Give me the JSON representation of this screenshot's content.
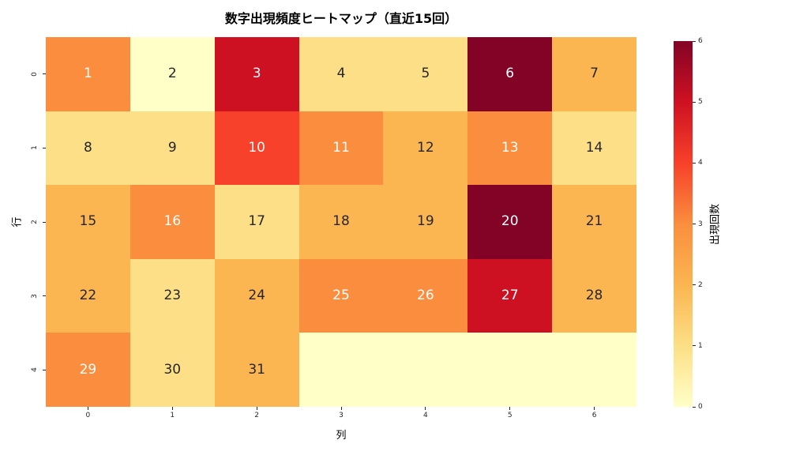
{
  "chart_data": {
    "type": "heatmap",
    "title": "数字出現頻度ヒートマップ（直近15回）",
    "xlabel": "列",
    "ylabel": "行",
    "colorbar_label": "出現回数",
    "x_tick_labels": [
      "0",
      "1",
      "2",
      "3",
      "4",
      "5",
      "6"
    ],
    "y_tick_labels": [
      "0",
      "1",
      "2",
      "3",
      "4"
    ],
    "colorbar_tick_labels": [
      "0",
      "1",
      "2",
      "3",
      "4",
      "5",
      "6"
    ],
    "vmin": 0,
    "vmax": 6,
    "colormap": "YlOrRd",
    "grid_shape": {
      "rows": 5,
      "cols": 7
    },
    "rows": [
      {
        "labels": [
          "1",
          "2",
          "3",
          "4",
          "5",
          "6",
          "7"
        ],
        "values": [
          3,
          0,
          5,
          1,
          1,
          6,
          2
        ]
      },
      {
        "labels": [
          "8",
          "9",
          "10",
          "11",
          "12",
          "13",
          "14"
        ],
        "values": [
          1,
          1,
          4,
          3,
          2,
          3,
          1
        ]
      },
      {
        "labels": [
          "15",
          "16",
          "17",
          "18",
          "19",
          "20",
          "21"
        ],
        "values": [
          2,
          3,
          1,
          2,
          2,
          6,
          2
        ]
      },
      {
        "labels": [
          "22",
          "23",
          "24",
          "25",
          "26",
          "27",
          "28"
        ],
        "values": [
          2,
          1,
          2,
          3,
          3,
          5,
          2
        ]
      },
      {
        "labels": [
          "29",
          "30",
          "31",
          "",
          "",
          "",
          ""
        ],
        "values": [
          3,
          1,
          2,
          0,
          0,
          0,
          0
        ]
      }
    ],
    "value_colors": {
      "0": "#ffffc8",
      "1": "#fcdf86",
      "2": "#fbb551",
      "3": "#fa8e3e",
      "4": "#f7412a",
      "5": "#ce1122",
      "6": "#830326"
    },
    "annotation_text_colors": {
      "dark": "#262626",
      "light": "#ffffff"
    }
  }
}
